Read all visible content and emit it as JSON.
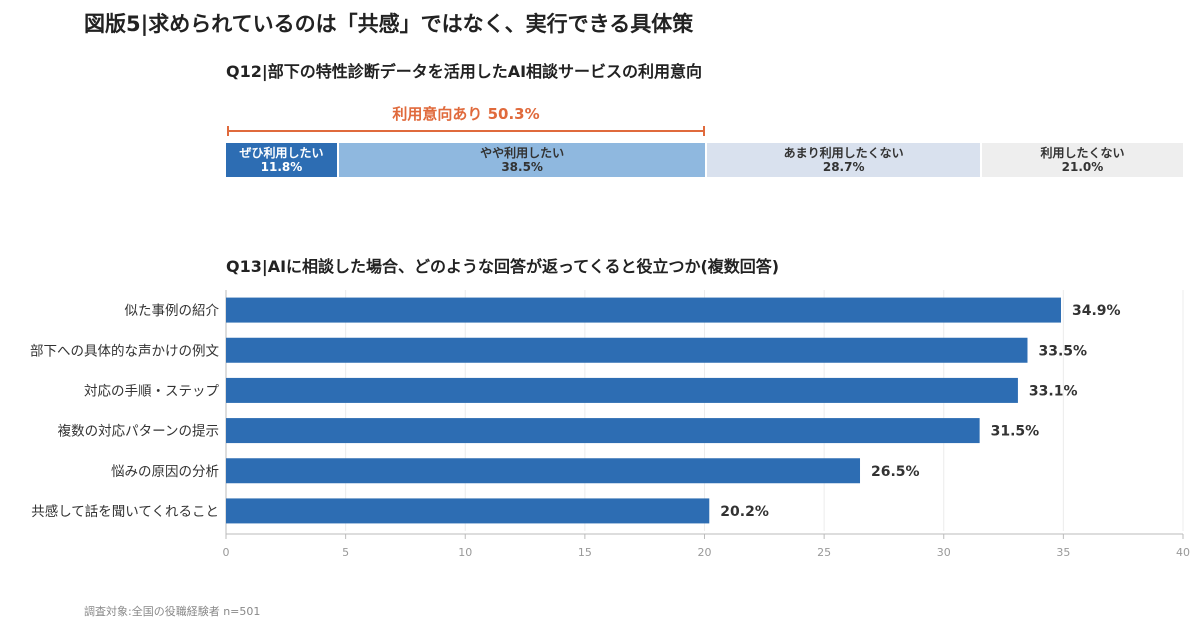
{
  "title": "図版5|求められているのは「共感」ではなく、実行できる具体策",
  "q12": {
    "title": "Q12|部下の特性診断データを活用したAI相談サービスの利用意向",
    "bracket_label": "利用意向あり 50.3%",
    "segments": [
      {
        "label": "ぜひ利用したい",
        "value_label": "11.8%",
        "value": 11.8,
        "color": "#2d6db3",
        "text_color": "#ffffff"
      },
      {
        "label": "やや利用したい",
        "value_label": "38.5%",
        "value": 38.5,
        "color": "#8fb8df",
        "text_color": "#333333"
      },
      {
        "label": "あまり利用したくない",
        "value_label": "28.7%",
        "value": 28.7,
        "color": "#d9e1ee",
        "text_color": "#333333"
      },
      {
        "label": "利用したくない",
        "value_label": "21.0%",
        "value": 21.0,
        "color": "#eeeeee",
        "text_color": "#333333"
      }
    ]
  },
  "q13": {
    "title": "Q13|AIに相談した場合、どのような回答が返ってくると役立つか(複数回答)"
  },
  "chart_data": {
    "type": "bar",
    "orientation": "horizontal",
    "categories": [
      "似た事例の紹介",
      "部下への具体的な声かけの例文",
      "対応の手順・ステップ",
      "複数の対応パターンの提示",
      "悩みの原因の分析",
      "共感して話を聞いてくれること"
    ],
    "values": [
      34.9,
      33.5,
      33.1,
      31.5,
      26.5,
      20.2
    ],
    "value_labels": [
      "34.9%",
      "33.5%",
      "33.1%",
      "31.5%",
      "26.5%",
      "20.2%"
    ],
    "xlim": [
      0,
      40
    ],
    "xticks": [
      0,
      5,
      10,
      15,
      20,
      25,
      30,
      35,
      40
    ],
    "xtick_labels": [
      "0",
      "5",
      "10",
      "15",
      "20",
      "25",
      "30",
      "35",
      "40"
    ],
    "bar_color": "#2d6db3",
    "grid": true
  },
  "footnote": "調査対象:全国の役職経験者 n=501"
}
